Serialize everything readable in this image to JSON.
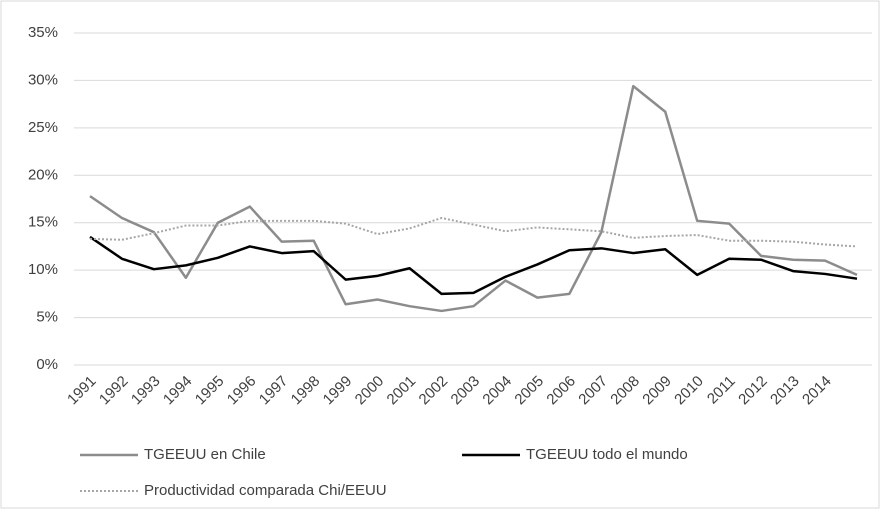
{
  "chart_data": {
    "type": "line",
    "categories": [
      "1991",
      "1992",
      "1993",
      "1994",
      "1995",
      "1996",
      "1997",
      "1998",
      "1999",
      "2000",
      "2001",
      "2002",
      "2003",
      "2004",
      "2005",
      "2006",
      "2007",
      "2008",
      "2009",
      "2010",
      "2011",
      "2012",
      "2013",
      "2014",
      null
    ],
    "series": [
      {
        "name": "TGEEUU en Chile",
        "color": "#8c8c8c",
        "style": "solid",
        "values": [
          17.8,
          15.5,
          14.0,
          9.2,
          15.0,
          16.7,
          13.0,
          13.1,
          6.4,
          6.9,
          6.2,
          5.7,
          6.2,
          8.9,
          7.1,
          7.5,
          14.0,
          29.4,
          26.7,
          15.2,
          14.9,
          11.5,
          11.1,
          11.0,
          9.5
        ]
      },
      {
        "name": "TGEEUU todo el mundo",
        "color": "#000000",
        "style": "solid",
        "values": [
          13.5,
          11.2,
          10.1,
          10.5,
          11.3,
          12.5,
          11.8,
          12.0,
          9.0,
          9.4,
          10.2,
          7.5,
          7.6,
          9.3,
          10.6,
          12.1,
          12.3,
          11.8,
          12.2,
          9.5,
          11.2,
          11.1,
          9.9,
          9.6,
          9.1
        ]
      },
      {
        "name": "Productividad comparada Chi/EEUU",
        "color": "#a6a6a6",
        "style": "dotted",
        "values": [
          13.3,
          13.2,
          13.9,
          14.7,
          14.7,
          15.2,
          15.2,
          15.2,
          14.9,
          13.8,
          14.4,
          15.5,
          14.8,
          14.1,
          14.5,
          14.3,
          14.1,
          13.4,
          13.6,
          13.7,
          13.1,
          13.1,
          13.0,
          12.7,
          12.5
        ]
      }
    ],
    "ylim": [
      0,
      35
    ],
    "yticks": [
      {
        "value": 0,
        "label": "0%"
      },
      {
        "value": 5,
        "label": "5%"
      },
      {
        "value": 10,
        "label": "10%"
      },
      {
        "value": 15,
        "label": "15%"
      },
      {
        "value": 20,
        "label": "20%"
      },
      {
        "value": 25,
        "label": "25%"
      },
      {
        "value": 30,
        "label": "30%"
      },
      {
        "value": 35,
        "label": "35%"
      }
    ],
    "grid": true,
    "legend": "bottom"
  }
}
